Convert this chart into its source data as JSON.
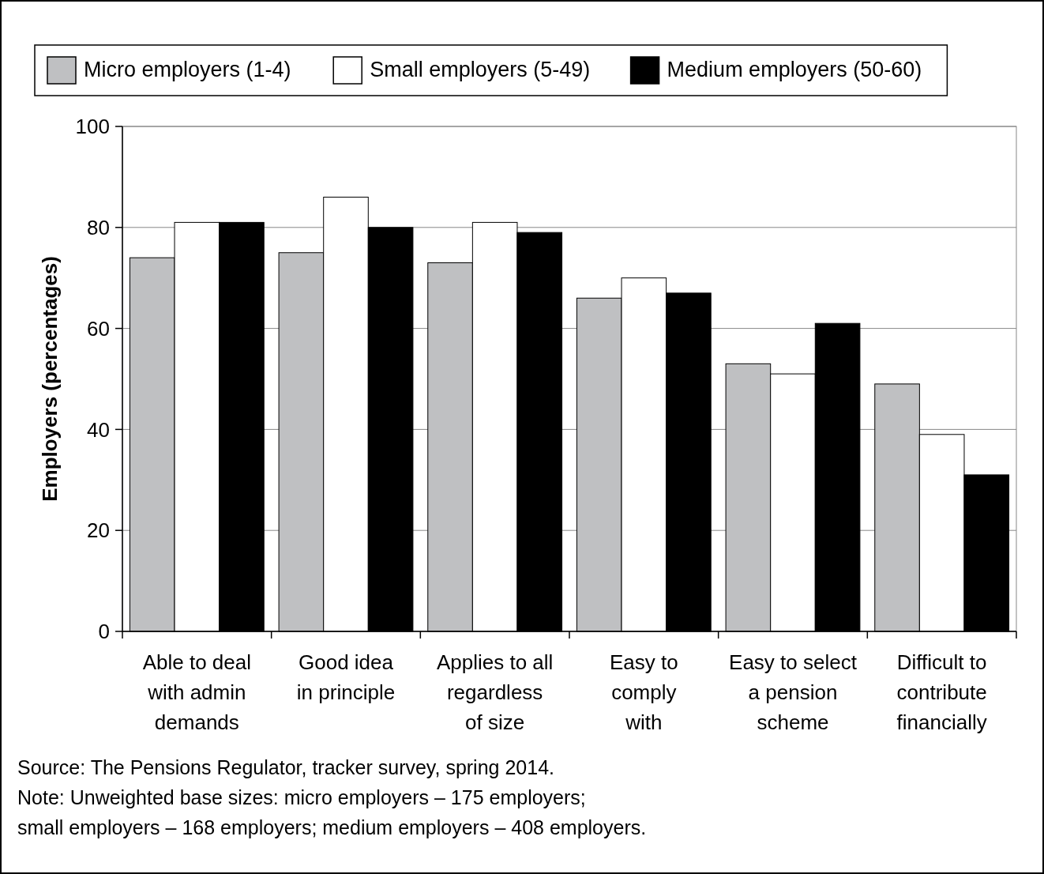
{
  "chart_data": {
    "type": "bar",
    "ylabel": "Employers (percentages)",
    "categories": [
      "Able to deal\nwith admin\ndemands",
      "Good idea\nin principle",
      "Applies to all\nregardless\nof size",
      "Easy to\ncomply\nwith",
      "Easy to select\na pension\nscheme",
      "Difficult to\ncontribute\nfinancially"
    ],
    "series": [
      {
        "name": "Micro employers (1-4)",
        "color": "#bfc0c2",
        "values": [
          74,
          75,
          73,
          66,
          53,
          49
        ]
      },
      {
        "name": "Small employers (5-49)",
        "color": "#ffffff",
        "values": [
          81,
          86,
          81,
          70,
          51,
          39
        ]
      },
      {
        "name": "Medium employers (50-60)",
        "color": "#000000",
        "values": [
          81,
          80,
          79,
          67,
          61,
          31
        ]
      }
    ],
    "ylim": [
      0,
      100
    ],
    "yticks": [
      0,
      20,
      40,
      60,
      80,
      100
    ],
    "grid": "y",
    "legend": "top",
    "annotations": [
      "Source: The Pensions Regulator, tracker survey, spring 2014.",
      "Note: Unweighted base sizes: micro employers – 175 employers;\nsmall employers – 168 employers; medium employers – 408 employers."
    ]
  }
}
